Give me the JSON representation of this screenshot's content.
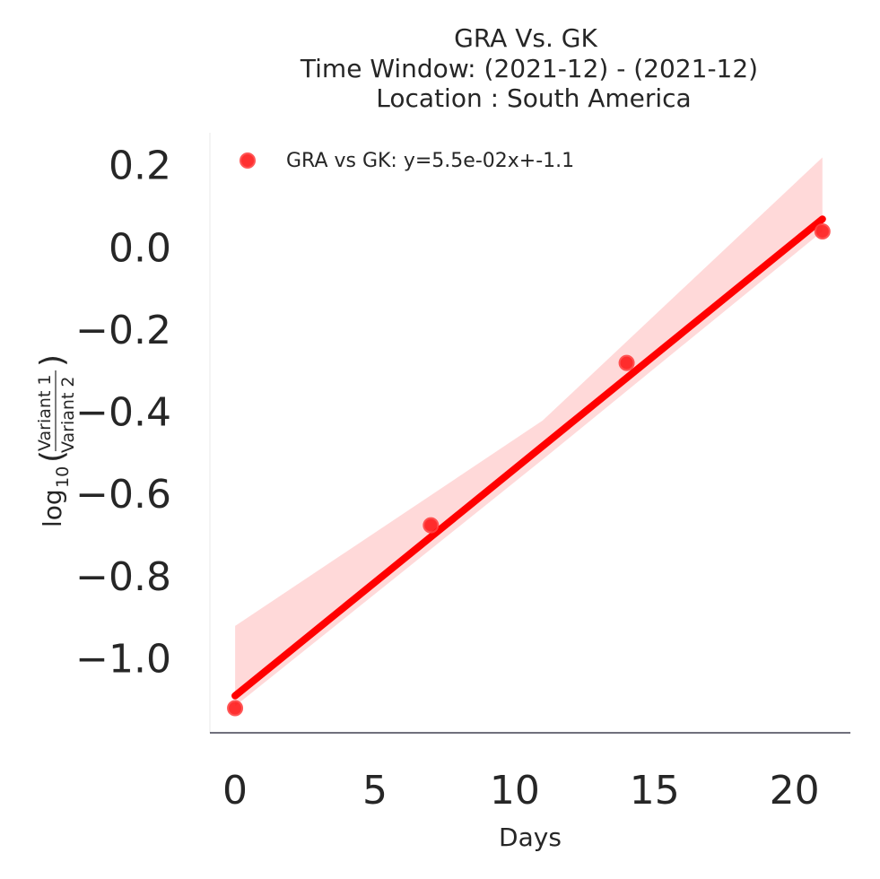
{
  "chart_data": {
    "type": "scatter",
    "title_lines": [
      "GRA Vs. GK",
      "Time Window: (2021-12) - (2021-12)",
      "Location : South America"
    ],
    "xlabel": "Days",
    "ylabel_parts": {
      "log": "log",
      "base": "10",
      "numerator": "Variant 1",
      "denominator": "Variant 2"
    },
    "xlim": [
      -0.9,
      22.0
    ],
    "ylim": [
      -1.18,
      0.28
    ],
    "x_ticks": [
      0,
      5,
      10,
      15,
      20
    ],
    "x_tick_labels": [
      "0",
      "5",
      "10",
      "15",
      "20"
    ],
    "y_ticks": [
      0.2,
      0.0,
      -0.2,
      -0.4,
      -0.6,
      -0.8,
      -1.0
    ],
    "y_tick_labels": [
      "0.2",
      "0.0",
      "−0.2",
      "−0.4",
      "−0.6",
      "−0.8",
      "−1.0"
    ],
    "series": [
      {
        "name": "GRA vs GK: y=5.5e-02x+-1.1",
        "color": "#ff0000",
        "points": [
          {
            "x": 0,
            "y": -1.12
          },
          {
            "x": 7,
            "y": -0.675
          },
          {
            "x": 14,
            "y": -0.28
          },
          {
            "x": 21,
            "y": 0.04
          }
        ],
        "fit": {
          "x": [
            0,
            21
          ],
          "y": [
            -1.09,
            0.07
          ]
        },
        "ci_band": {
          "x": [
            0,
            11,
            21
          ],
          "upper": [
            -0.92,
            -0.42,
            0.22
          ],
          "lower": [
            -1.115,
            -0.515,
            0.04
          ]
        }
      }
    ],
    "legend_position": "top-left",
    "grid": false
  }
}
